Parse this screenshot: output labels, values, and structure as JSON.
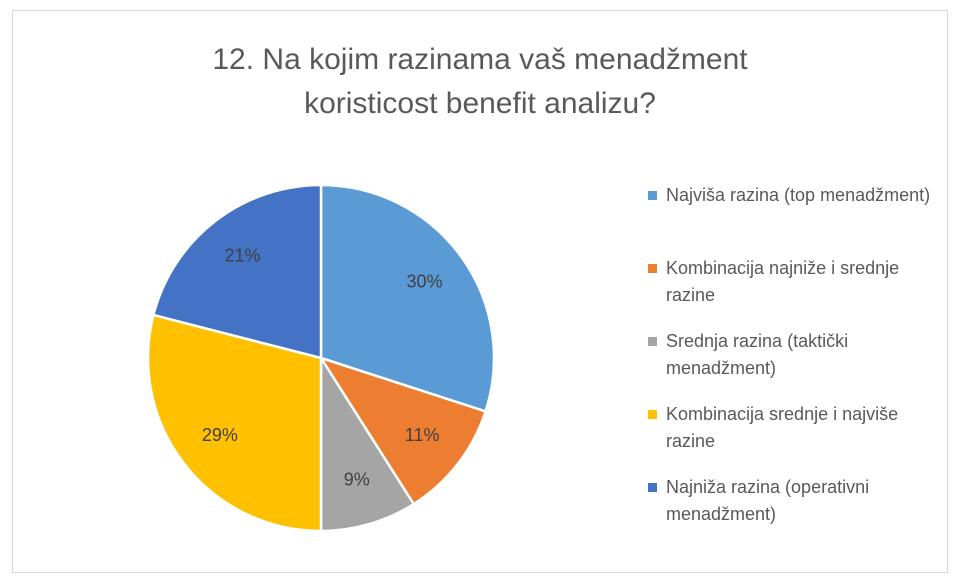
{
  "chart_data": {
    "type": "pie",
    "title": "12. Na kojim razinama vaš menadžment koristicost benefit analizu?",
    "categories": [
      "Najviša razina (top menadžment)",
      "Kombinacija najniže i srednje razine",
      "Srednja razina (taktički menadžment)",
      "Kombinacija srednje i najviše razine",
      "Najniža razina (operativni menadžment)"
    ],
    "values": [
      30,
      11,
      9,
      29,
      21
    ],
    "value_labels": [
      "30%",
      "11%",
      "9%",
      "29%",
      "21%"
    ],
    "colors": [
      "#5b9bd5",
      "#ed7d31",
      "#a5a5a5",
      "#ffc000",
      "#4472c4"
    ],
    "legend": "right"
  }
}
